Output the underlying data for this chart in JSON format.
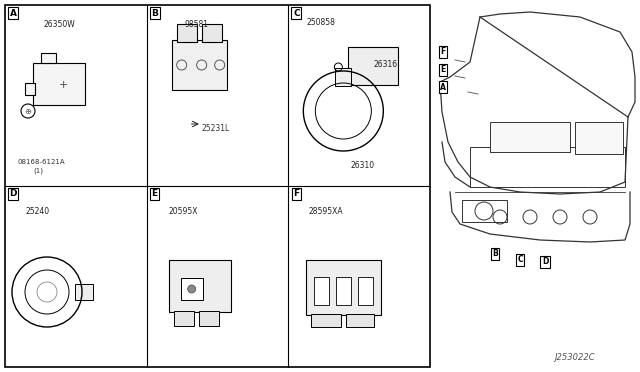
{
  "background_color": "#ffffff",
  "border_color": "#000000",
  "line_color": "#333333",
  "grid_rows": 2,
  "grid_cols": 3,
  "fig_width": 6.4,
  "fig_height": 3.72,
  "title_code": "J253022C",
  "cells": [
    {
      "label": "A",
      "part_label": "26350W",
      "sub_label": "08168-6121A\n(1)",
      "row": 0,
      "col": 0
    },
    {
      "label": "B",
      "part_label": "98581",
      "sub_label": "25231L",
      "row": 0,
      "col": 1
    },
    {
      "label": "C",
      "part_label": "250858",
      "sub_label": "26316\n26310",
      "row": 0,
      "col": 2
    },
    {
      "label": "D",
      "part_label": "25240",
      "sub_label": "",
      "row": 1,
      "col": 0
    },
    {
      "label": "E",
      "part_label": "20595X",
      "sub_label": "",
      "row": 1,
      "col": 1
    },
    {
      "label": "F",
      "part_label": "28595XA",
      "sub_label": "",
      "row": 1,
      "col": 2
    }
  ],
  "car_section": {
    "labels": [
      "F",
      "E",
      "A",
      "B",
      "C",
      "D"
    ],
    "label_color": "#333333"
  }
}
